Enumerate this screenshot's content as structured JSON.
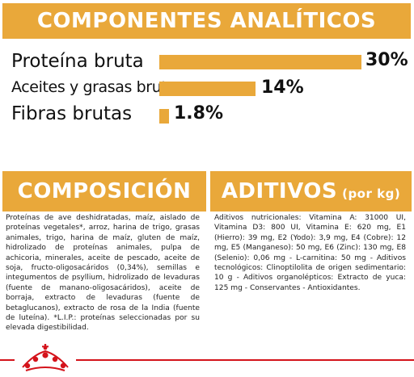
{
  "analytic": {
    "title": "COMPONENTES ANALÍTICOS",
    "items": [
      {
        "label": "Proteína bruta",
        "percent": "30%",
        "value": 30
      },
      {
        "label": "Aceites y grasas brutos",
        "percent": "14%",
        "value": 14
      },
      {
        "label": "Fibras brutas",
        "percent": "1.8%",
        "value": 1.8
      }
    ]
  },
  "composition": {
    "title": "COMPOSICIÓN",
    "text": "Proteínas de ave deshidratadas, maíz, aislado de proteínas vegetales*, arroz, harina de trigo, grasas animales, trigo, harina de maíz, gluten de maíz, hidrolizado de proteínas animales, pulpa de achicoria, minerales, aceite de pescado, aceite de soja, fructo-oligosacáridos (0,34%), semillas e integumentos de psyllium, hidrolizado de levaduras (fuente de manano-oligosacáridos), aceite de borraja, extracto de levaduras (fuente de betaglucanos), extracto de rosa de la India (fuente de luteína). *L.I.P.: proteínas seleccionadas por su elevada digestibilidad."
  },
  "additives": {
    "title": "ADITIVOS",
    "title_suffix": "(por kg)",
    "text": "Aditivos nutricionales: Vitamina A: 31000 UI, Vitamina D3: 800 UI, Vitamina E: 620 mg, E1 (Hierro): 39 mg, E2 (Yodo): 3,9 mg, E4 (Cobre): 12 mg, E5 (Manganeso): 50 mg, E6 (Zinc): 130 mg, E8 (Selenio): 0,06 mg - L-carnitina: 50 mg - Aditivos tecnológicos: Clinoptilolita de origen sedimentario: 10 g - Aditivos organolépticos: Extracto de yuca: 125 mg - Conservantes - Antioxidantes."
  },
  "colors": {
    "accent": "#e9a83a",
    "brand_red": "#d4131b"
  },
  "footer": {
    "logo_icon": "royal-canin-crown-icon"
  }
}
